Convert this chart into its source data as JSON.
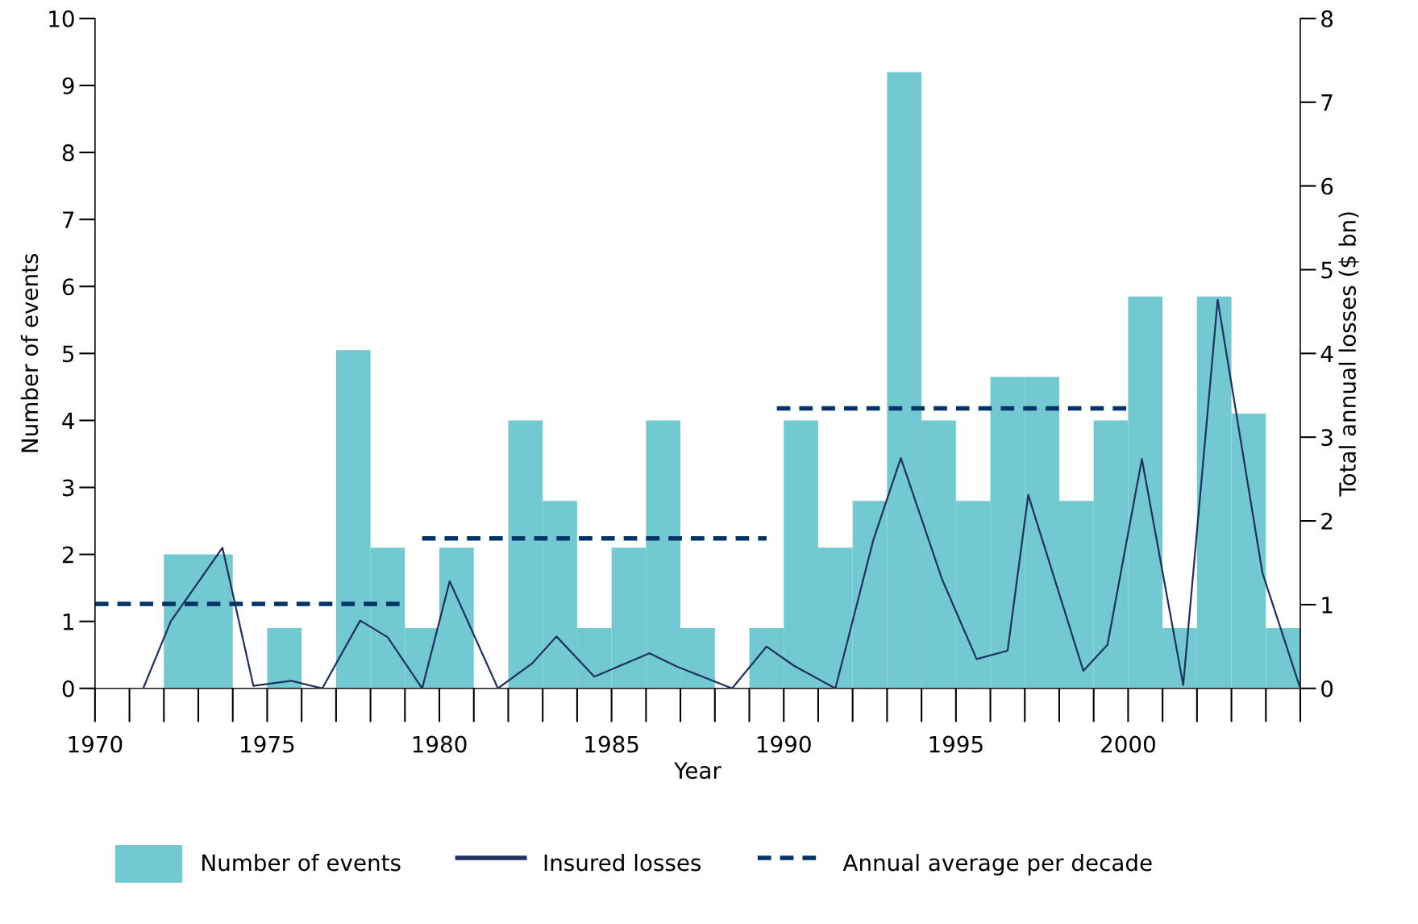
{
  "chart_data": {
    "type": "bar",
    "xlabel": "Year",
    "ylabel": "Number of events",
    "y2label": "Total annual losses ($ bn)",
    "xlim": [
      1970,
      2005
    ],
    "xticks": [
      1970,
      1975,
      1980,
      1985,
      1990,
      1995,
      2000
    ],
    "ylim": [
      0,
      10
    ],
    "yticks": [
      0,
      1,
      2,
      3,
      4,
      5,
      6,
      7,
      8,
      9,
      10
    ],
    "y2lim": [
      0,
      8
    ],
    "y2ticks": [
      0,
      1,
      2,
      3,
      4,
      5,
      6,
      7,
      8
    ],
    "grid": false,
    "legend": "bottom",
    "series": [
      {
        "name": "Number of events",
        "color": "#72c9d2",
        "x": [
          1970.5,
          1971.5,
          1972.5,
          1973.5,
          1974.5,
          1975.5,
          1976.5,
          1977.5,
          1978.5,
          1979.5,
          1980.5,
          1981.5,
          1982.5,
          1983.5,
          1984.5,
          1985.5,
          1986.5,
          1987.5,
          1988.5,
          1989.5,
          1990.5,
          1991.5,
          1992.5,
          1993.5,
          1994.5,
          1995.5,
          1996.5,
          1997.5,
          1998.5,
          1999.5,
          2000.5,
          2001.5,
          2002.5,
          2003.5,
          2004.5
        ],
        "values": [
          0,
          0,
          2,
          2,
          0,
          0.9,
          0,
          5.05,
          2.1,
          0.9,
          2.1,
          0,
          4,
          2.8,
          0.9,
          2.1,
          4,
          0.9,
          0,
          0.9,
          4,
          2.1,
          2.8,
          9.2,
          4,
          2.8,
          4.65,
          4.65,
          2.8,
          4,
          5.85,
          0.9,
          5.85,
          4.1,
          0.9
        ]
      },
      {
        "name": "Insured losses",
        "type": "line",
        "axis": "y2",
        "color": "#1f3160",
        "line_style": "solid",
        "x": [
          1971.4,
          1972.2,
          1973.7,
          1974.6,
          1975.7,
          1976.6,
          1977.7,
          1978.5,
          1979.5,
          1980.3,
          1981.7,
          1982.7,
          1983.4,
          1984.5,
          1986.1,
          1986.9,
          1988.5,
          1989.5,
          1990.3,
          1991.5,
          1992.6,
          1993.4,
          1994.6,
          1995.6,
          1996.5,
          1997.1,
          1998.7,
          1999.4,
          2000.4,
          2001.6,
          2002.6,
          2003.9,
          2005
        ],
        "values": [
          0,
          0.8,
          1.68,
          0.03,
          0.09,
          0,
          0.81,
          0.61,
          0,
          1.28,
          0,
          0.3,
          0.62,
          0.14,
          0.42,
          0.26,
          0,
          0.5,
          0.27,
          0,
          1.77,
          2.75,
          1.3,
          0.35,
          0.45,
          2.31,
          0.21,
          0.52,
          2.74,
          0.04,
          4.64,
          1.38,
          0
        ]
      },
      {
        "name": "Annual average per decade",
        "type": "line",
        "color": "#003366",
        "line_style": "dashed",
        "x": [
          1970,
          1979,
          1979.2,
          1979.5,
          1989.5,
          1989.6,
          1989.8,
          2000
        ],
        "values": [
          1.26,
          1.26,
          null,
          2.24,
          2.24,
          null,
          4.18,
          4.18
        ]
      }
    ]
  }
}
